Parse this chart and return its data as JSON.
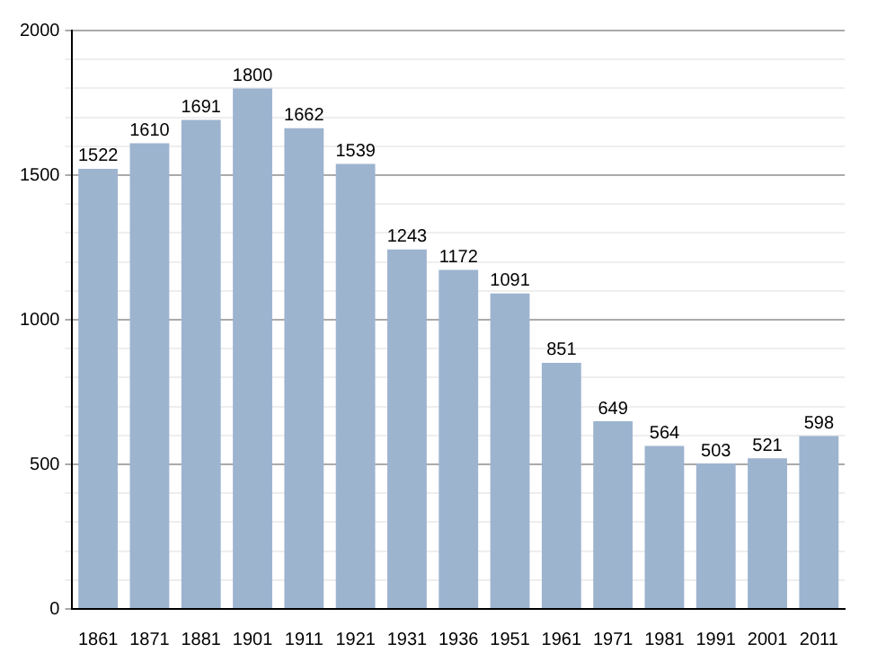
{
  "chart_data": {
    "type": "bar",
    "categories": [
      "1861",
      "1871",
      "1881",
      "1901",
      "1911",
      "1921",
      "1931",
      "1936",
      "1951",
      "1961",
      "1971",
      "1981",
      "1991",
      "2001",
      "2011"
    ],
    "values": [
      1522,
      1610,
      1691,
      1800,
      1662,
      1539,
      1243,
      1172,
      1091,
      851,
      649,
      564,
      503,
      521,
      598
    ],
    "color": "#9db4cf",
    "data_labels": true,
    "ylim": [
      0,
      2000
    ],
    "yticks": [
      0,
      {
        "value": 100,
        "label": null
      },
      {
        "value": 200,
        "label": null
      },
      {
        "value": 300,
        "label": null
      },
      {
        "value": 400,
        "label": null
      },
      500,
      {
        "value": 600,
        "label": null
      },
      {
        "value": 700,
        "label": null
      },
      {
        "value": 800,
        "label": null
      },
      {
        "value": 900,
        "label": null
      },
      1000,
      {
        "value": 1100,
        "label": null
      },
      {
        "value": 1200,
        "label": null
      },
      {
        "value": 1300,
        "label": null
      },
      {
        "value": 1400,
        "label": null
      },
      1500,
      {
        "value": 1600,
        "label": null
      },
      {
        "value": 1700,
        "label": null
      },
      {
        "value": 1800,
        "label": null
      },
      {
        "value": 1900,
        "label": null
      },
      2000
    ],
    "grid": "y"
  }
}
